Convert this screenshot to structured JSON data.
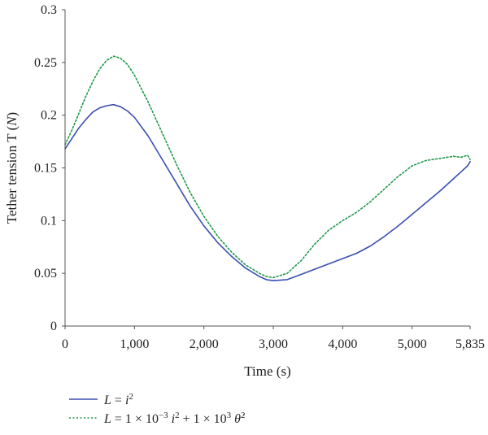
{
  "chart_data": {
    "type": "line",
    "xlabel": "Time (s)",
    "ylabel": "Tether tension T (N)",
    "xlim": [
      0,
      5835
    ],
    "ylim": [
      0,
      0.3
    ],
    "x_ticks": [
      0,
      1000,
      2000,
      3000,
      4000,
      5000,
      5835
    ],
    "x_tick_labels": [
      "0",
      "1,000",
      "2,000",
      "3,000",
      "4,000",
      "5,000",
      "5,835"
    ],
    "y_ticks": [
      0,
      0.05,
      0.1,
      0.15,
      0.2,
      0.25,
      0.3
    ],
    "y_tick_labels": [
      "0",
      "0.05",
      "0.1",
      "0.15",
      "0.2",
      "0.25",
      "0.3"
    ],
    "grid": false,
    "legend_position": "bottom-left",
    "series": [
      {
        "name": "L = i^2",
        "style": "solid",
        "color": "#3a4fb0",
        "x": [
          0,
          100,
          200,
          300,
          400,
          500,
          600,
          700,
          800,
          900,
          1000,
          1200,
          1400,
          1600,
          1800,
          2000,
          2200,
          2400,
          2600,
          2800,
          2900,
          3000,
          3200,
          3400,
          3600,
          3800,
          4000,
          4200,
          4400,
          4600,
          4800,
          5000,
          5200,
          5400,
          5600,
          5700,
          5800,
          5835
        ],
        "y": [
          0.168,
          0.178,
          0.188,
          0.196,
          0.203,
          0.207,
          0.209,
          0.21,
          0.208,
          0.204,
          0.198,
          0.18,
          0.158,
          0.136,
          0.114,
          0.095,
          0.079,
          0.066,
          0.055,
          0.047,
          0.044,
          0.043,
          0.044,
          0.049,
          0.054,
          0.059,
          0.064,
          0.069,
          0.076,
          0.085,
          0.095,
          0.106,
          0.117,
          0.128,
          0.14,
          0.146,
          0.152,
          0.156
        ]
      },
      {
        "name": "L = 1 × 10^-3 i^2 + 1 × 10^3 θ̇^2",
        "style": "dotted",
        "color": "#1f9a4a",
        "x": [
          0,
          100,
          200,
          300,
          400,
          500,
          600,
          700,
          800,
          900,
          1000,
          1200,
          1400,
          1600,
          1800,
          2000,
          2200,
          2400,
          2600,
          2800,
          2900,
          3000,
          3200,
          3400,
          3600,
          3800,
          4000,
          4200,
          4400,
          4600,
          4800,
          5000,
          5200,
          5400,
          5600,
          5700,
          5800,
          5835
        ],
        "y": [
          0.172,
          0.186,
          0.202,
          0.218,
          0.232,
          0.244,
          0.252,
          0.256,
          0.254,
          0.248,
          0.238,
          0.212,
          0.183,
          0.154,
          0.127,
          0.104,
          0.085,
          0.07,
          0.058,
          0.05,
          0.047,
          0.046,
          0.05,
          0.062,
          0.078,
          0.091,
          0.1,
          0.108,
          0.118,
          0.13,
          0.142,
          0.152,
          0.157,
          0.159,
          0.161,
          0.16,
          0.162,
          0.158
        ]
      }
    ]
  }
}
